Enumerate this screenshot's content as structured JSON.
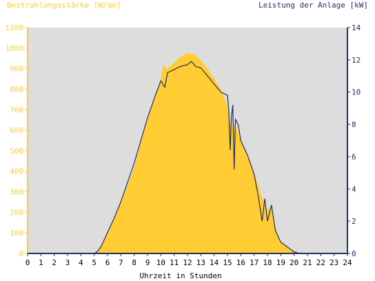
{
  "chart_data": {
    "type": "area",
    "title_left": "Bestrahlungsstärke [W/qm]",
    "title_right": "Leistung der Anlage [kW]",
    "xlabel": "Uhrzeit in Stunden",
    "xlim": [
      0,
      24
    ],
    "ylim_left": [
      0,
      1100
    ],
    "ylim_right": [
      0,
      14
    ],
    "x_ticks": [
      "0",
      "1",
      "2",
      "3",
      "4",
      "5",
      "6",
      "7",
      "8",
      "9",
      "10",
      "11",
      "12",
      "13",
      "14",
      "15",
      "16",
      "17",
      "18",
      "19",
      "20",
      "21",
      "22",
      "23",
      "24"
    ],
    "y_ticks_left": [
      "0",
      "100",
      "200",
      "300",
      "400",
      "500",
      "600",
      "700",
      "800",
      "900",
      "1000",
      "1100"
    ],
    "y_ticks_right": [
      "0",
      "2",
      "4",
      "6",
      "8",
      "10",
      "12",
      "14"
    ],
    "series": [
      {
        "axis": "left",
        "kind": "area",
        "x": [
          0,
          5.0,
          5.2,
          5.5,
          6.0,
          6.5,
          7.0,
          7.5,
          8.0,
          8.5,
          9.0,
          9.5,
          10.0,
          10.2,
          10.5,
          11.0,
          11.5,
          12.0,
          12.5,
          13.0,
          13.5,
          14.0,
          14.5,
          15.0,
          15.3,
          15.5,
          15.8,
          16.0,
          16.5,
          17.0,
          17.5,
          18.0,
          18.3,
          18.5,
          18.8,
          19.0,
          19.5,
          20.0,
          20.3,
          20.5,
          24
        ],
        "y": [
          0,
          0,
          10,
          40,
          100,
          170,
          250,
          330,
          420,
          540,
          660,
          760,
          850,
          920,
          900,
          930,
          960,
          975,
          970,
          940,
          900,
          850,
          800,
          720,
          600,
          630,
          590,
          560,
          470,
          390,
          290,
          210,
          230,
          150,
          90,
          60,
          30,
          10,
          5,
          0,
          0
        ]
      },
      {
        "axis": "right",
        "kind": "line",
        "x": [
          0,
          5.0,
          5.2,
          5.5,
          6.0,
          6.5,
          7.0,
          7.5,
          8.0,
          8.5,
          9.0,
          9.5,
          10.0,
          10.3,
          10.5,
          11.0,
          11.5,
          12.0,
          12.3,
          12.6,
          13.0,
          13.5,
          14.0,
          14.5,
          15.0,
          15.1,
          15.2,
          15.3,
          15.4,
          15.5,
          15.6,
          15.8,
          16.0,
          16.5,
          17.0,
          17.3,
          17.6,
          17.8,
          18.0,
          18.3,
          18.6,
          19.0,
          19.5,
          20.0,
          20.3,
          20.5,
          24
        ],
        "y": [
          0,
          0,
          0.1,
          0.4,
          1.3,
          2.2,
          3.2,
          4.4,
          5.6,
          7.0,
          8.4,
          9.6,
          10.7,
          10.3,
          11.2,
          11.4,
          11.6,
          11.7,
          11.9,
          11.6,
          11.5,
          11.0,
          10.5,
          10.0,
          9.8,
          8.8,
          6.4,
          8.5,
          9.2,
          5.2,
          8.3,
          8.0,
          7.0,
          6.1,
          4.9,
          3.6,
          2.0,
          3.4,
          2.0,
          3.0,
          1.4,
          0.7,
          0.4,
          0.1,
          0.02,
          0,
          0
        ]
      }
    ],
    "colors": {
      "area_fill": "#ffcc33",
      "line": "#1f2f66",
      "plot_bg": "#dddddd",
      "left_axis": "#ffcc33",
      "right_axis": "#1f2f66",
      "x_axis": "#000000"
    }
  }
}
